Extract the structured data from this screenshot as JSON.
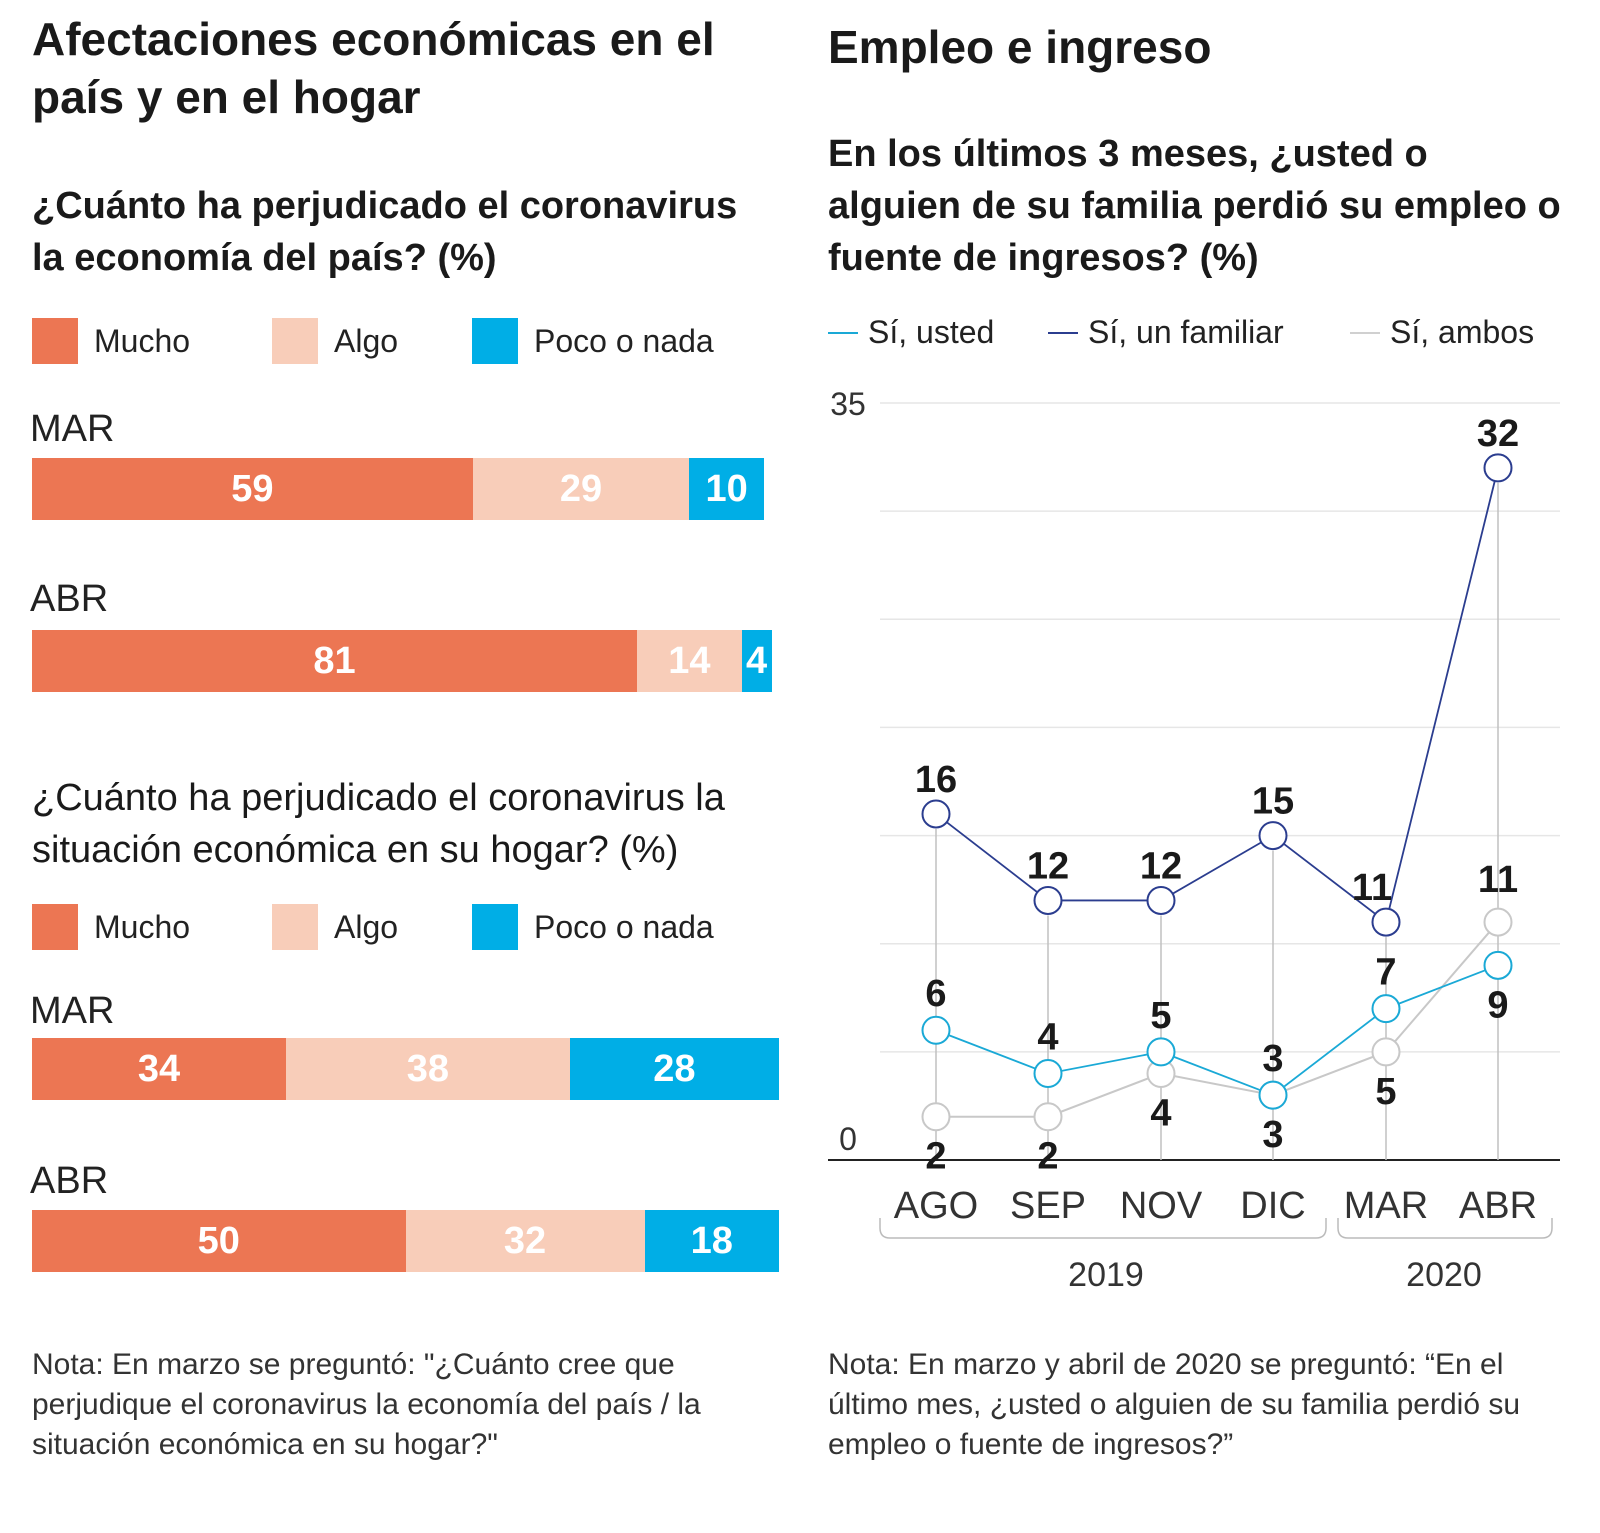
{
  "left": {
    "title": "Afectaciones económicas en el país y en el hogar",
    "legend": [
      "Mucho",
      "Algo",
      "Poco o nada"
    ],
    "colors": {
      "mucho": "#ec7653",
      "algo": "#f8cdb9",
      "poco": "#00aee6"
    },
    "q1": {
      "question": "¿Cuánto ha perjudicado el corona­virus la economía del país?  (%)"
    },
    "q2": {
      "question": "¿Cuánto ha perjudicado el coronavirus la situación económica en su hogar? (%)"
    },
    "note": "Nota: En marzo se preguntó: \"¿Cuánto cree que perjudique el coronavirus la economía del país / la situación económica en su hogar?\""
  },
  "right": {
    "title": "Empleo e ingreso",
    "question": "En los últimos 3 meses, ¿usted o alguien de su familia perdió su empleo o fuente de ingresos?  (%)",
    "legend": [
      "Sí, usted",
      "Sí, un familiar",
      "Sí, ambos"
    ],
    "colors": {
      "usted": "#1aa9d6",
      "familiar": "#2b3d8f",
      "ambos": "#c8c8c8",
      "vline": "#c0c0c0"
    },
    "note": "Nota: En marzo y abril de 2020 se preguntó: “En el último mes, ¿usted o alguien de su familia perdió su empleo o fuente de ingresos?”"
  },
  "chart_data": [
    {
      "type": "bar",
      "stacked": true,
      "title": "¿Cuánto ha perjudicado el corona­virus la economía del país?  (%)",
      "categories": [
        "MAR",
        "ABR"
      ],
      "series": [
        {
          "name": "Mucho",
          "values": [
            59,
            81
          ]
        },
        {
          "name": "Algo",
          "values": [
            29,
            14
          ]
        },
        {
          "name": "Poco o nada",
          "values": [
            10,
            4
          ]
        }
      ]
    },
    {
      "type": "bar",
      "stacked": true,
      "title": "¿Cuánto ha perjudicado el coronavirus la situación económica en su hogar? (%)",
      "categories": [
        "MAR",
        "ABR"
      ],
      "series": [
        {
          "name": "Mucho",
          "values": [
            34,
            50
          ]
        },
        {
          "name": "Algo",
          "values": [
            38,
            32
          ]
        },
        {
          "name": "Poco o nada",
          "values": [
            28,
            18
          ]
        }
      ]
    },
    {
      "type": "line",
      "title": "En los últimos 3 meses, ¿usted o alguien de su familia perdió su empleo o fuente de ingresos?  (%)",
      "categories": [
        "AGO",
        "SEP",
        "NOV",
        "DIC",
        "MAR",
        "ABR"
      ],
      "groups": [
        {
          "label": "2019",
          "span": [
            0,
            3
          ]
        },
        {
          "label": "2020",
          "span": [
            4,
            5
          ]
        }
      ],
      "ylim": [
        0,
        35
      ],
      "yticks": [
        0,
        35
      ],
      "grid": true,
      "legend_position": "top",
      "series": [
        {
          "name": "Sí, usted",
          "values": [
            6,
            4,
            5,
            3,
            7,
            9
          ]
        },
        {
          "name": "Sí, un familiar",
          "values": [
            16,
            12,
            12,
            15,
            11,
            32
          ]
        },
        {
          "name": "Sí, ambos",
          "values": [
            2,
            2,
            4,
            3,
            5,
            11
          ]
        }
      ]
    }
  ]
}
